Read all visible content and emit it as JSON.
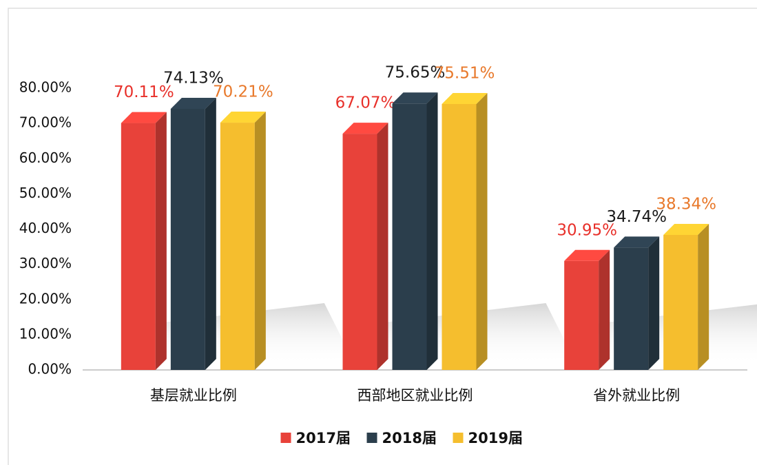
{
  "chart_data": {
    "type": "bar3d",
    "categories": [
      "基层就业比例",
      "西部地区就业比例",
      "省外就业比例"
    ],
    "series": [
      {
        "name": "2017届",
        "color": "#e8423a",
        "label_color": "#e8302a",
        "values": [
          70.11,
          67.07,
          30.95
        ],
        "value_labels": [
          "70.11%",
          "67.07%",
          "30.95%"
        ]
      },
      {
        "name": "2018届",
        "color": "#2b3e4c",
        "label_color": "#1a1a1a",
        "values": [
          74.13,
          75.65,
          34.74
        ],
        "value_labels": [
          "74.13%",
          "75.65%",
          "34.74%"
        ]
      },
      {
        "name": "2019届",
        "color": "#f5be2e",
        "label_color": "#e8782a",
        "values": [
          70.21,
          75.51,
          38.34
        ],
        "value_labels": [
          "70.21%",
          "75.51%",
          "38.34%"
        ]
      }
    ],
    "ylim": [
      0,
      80
    ],
    "yticks": [
      {
        "value": 0,
        "label": "0.00%"
      },
      {
        "value": 10,
        "label": "10.00%"
      },
      {
        "value": 20,
        "label": "20.00%"
      },
      {
        "value": 30,
        "label": "30.00%"
      },
      {
        "value": 40,
        "label": "40.00%"
      },
      {
        "value": 50,
        "label": "50.00%"
      },
      {
        "value": 60,
        "label": "60.00%"
      },
      {
        "value": 70,
        "label": "70.00%"
      },
      {
        "value": 80,
        "label": "80.00%"
      }
    ],
    "grid": false,
    "legend": "bottom"
  }
}
